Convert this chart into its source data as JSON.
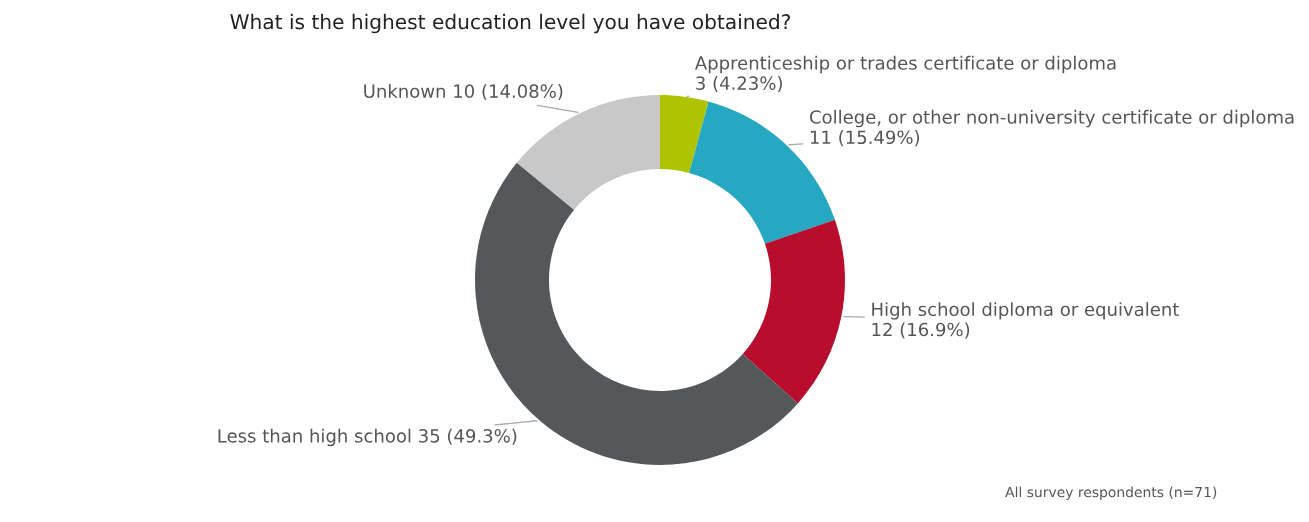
{
  "chart_data": {
    "type": "donut",
    "title": "What is the highest education level you have obtained?",
    "categories": [
      "Apprenticeship or trades certificate or diploma",
      "College, or other non-university certificate or diploma",
      "High school diploma or equivalent",
      "Less than high school",
      "Unknown"
    ],
    "values": [
      3,
      11,
      12,
      35,
      10
    ],
    "value_labels": [
      "3 (4.23%)",
      "11 (15.49%)",
      "12 (16.9%)",
      "35 (49.3%)",
      "10 (14.08%)"
    ],
    "colors": [
      "#afc400",
      "#26a8c2",
      "#b90d2e",
      "#54585a",
      "#c8c8c8"
    ],
    "annotations": [
      "All survey respondents (n=71)"
    ],
    "legend": false
  }
}
